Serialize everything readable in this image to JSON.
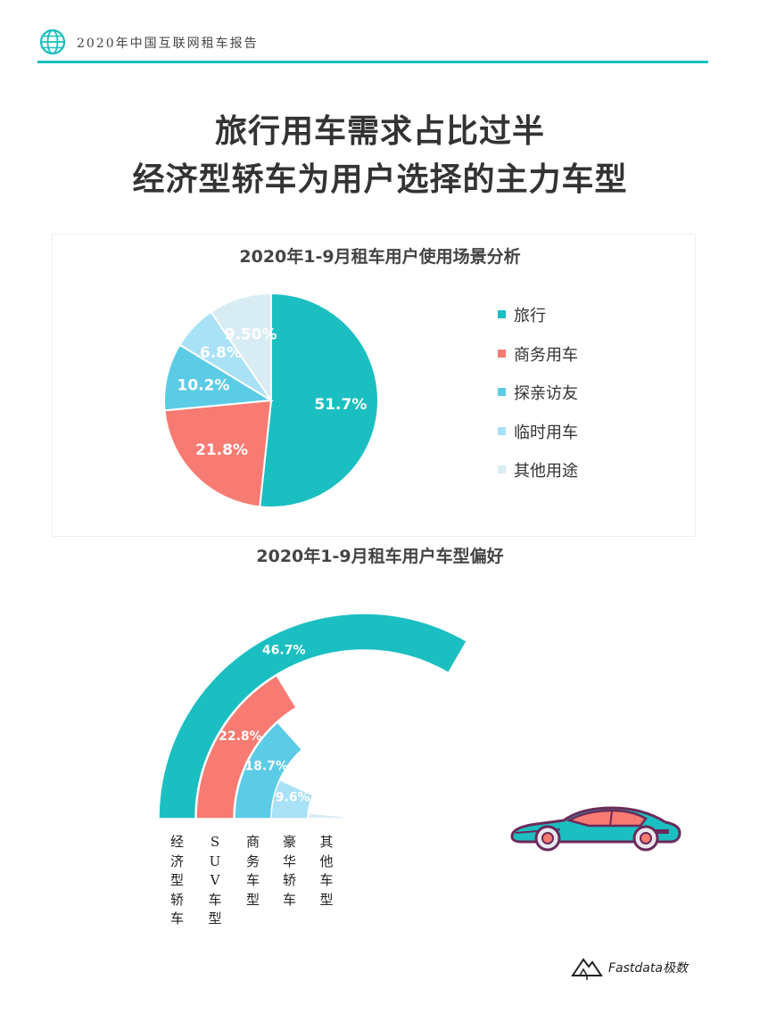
{
  "header": {
    "title": "2020年中国互联网租车报告",
    "logo_icon": "globe-icon"
  },
  "page_title": {
    "line1": "旅行用车需求占比过半",
    "line2": "经济型轿车为用户选择的主力车型"
  },
  "colors": {
    "accent": "#16bfbe",
    "teal": "#1bbfc1",
    "coral": "#f77b72",
    "sky": "#5ccbe6",
    "light": "#a9e1f6",
    "pale": "#d8ecf3"
  },
  "chart_data": [
    {
      "type": "pie",
      "title": "2020年1-9月租车用户使用场景分析",
      "legend_position": "right",
      "slices": [
        {
          "label": "旅行",
          "value": 51.7,
          "display": "51.7%",
          "color": "#1bbfc1"
        },
        {
          "label": "商务用车",
          "value": 21.8,
          "display": "21.8%",
          "color": "#f77b72"
        },
        {
          "label": "探亲访友",
          "value": 10.2,
          "display": "10.2%",
          "color": "#5ccbe6"
        },
        {
          "label": "临时用车",
          "value": 6.8,
          "display": "6.8%",
          "color": "#a9e1f6"
        },
        {
          "label": "其他用途",
          "value": 9.5,
          "display": "9.50%",
          "color": "#d8ecf3"
        }
      ]
    },
    {
      "type": "bar",
      "subtype": "radial-bar",
      "title": "2020年1-9月租车用户车型偏好",
      "categories": [
        "经济型轿车",
        "SUV车型",
        "商务车型",
        "豪华轿车",
        "其他车型"
      ],
      "series": [
        {
          "values": [
            46.7,
            22.8,
            18.7,
            9.6,
            2.2
          ],
          "labels": [
            "46.7%",
            "22.8%",
            "18.7%",
            "9.6%",
            ""
          ]
        }
      ],
      "colors": [
        "#1bbfc1",
        "#f77b72",
        "#5ccbe6",
        "#a9e1f6",
        "#d8ecf3"
      ],
      "max_value": 70
    }
  ],
  "illustration": {
    "car_icon": "sports-car-icon"
  },
  "brand": {
    "text": "Fastdata极数",
    "icon": "mountain-logo-icon"
  }
}
